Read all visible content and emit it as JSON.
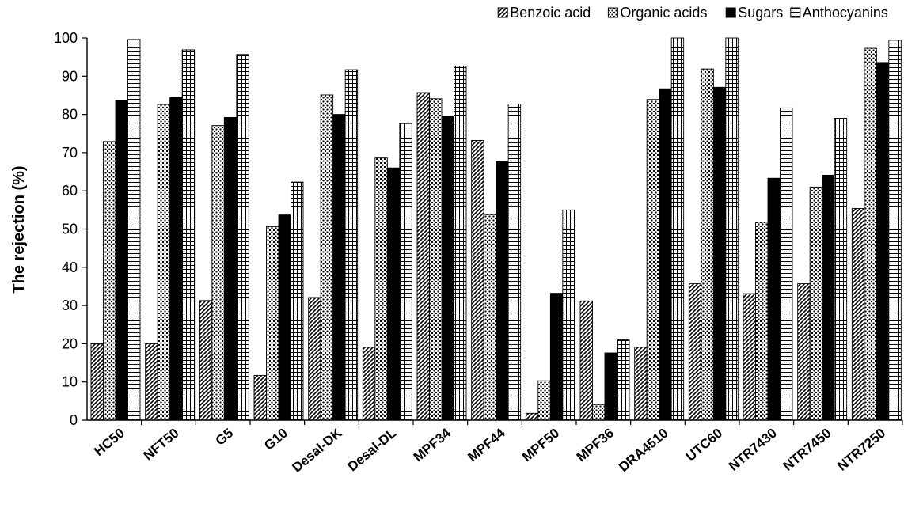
{
  "chart_data": {
    "type": "bar",
    "ylabel": "The rejection (%)",
    "xlabel": "",
    "ylim": [
      0,
      100
    ],
    "yticks": [
      0,
      10,
      20,
      30,
      40,
      50,
      60,
      70,
      80,
      90,
      100
    ],
    "grid": false,
    "legend_position": "top-right",
    "categories": [
      "HC50",
      "NFT50",
      "G5",
      "G10",
      "Desal-DK",
      "Desal-DL",
      "MPF34",
      "MPF44",
      "MPF50",
      "MPF36",
      "DRA4510",
      "UTC60",
      "NTR7430",
      "NTR7450",
      "NTR7250"
    ],
    "series": [
      {
        "name": "Benzoic acid",
        "pattern": "diagonal",
        "values": [
          20,
          20,
          31.3,
          11.7,
          32.1,
          19.1,
          85.7,
          73.2,
          1.8,
          31.2,
          19.1,
          35.7,
          33.1,
          35.7,
          55.4
        ]
      },
      {
        "name": "Organic acids",
        "pattern": "dots",
        "values": [
          72.9,
          82.6,
          77.1,
          50.6,
          85.1,
          68.6,
          84.1,
          53.8,
          10.3,
          4.1,
          83.9,
          91.9,
          51.8,
          61,
          97.3
        ]
      },
      {
        "name": "Sugars",
        "pattern": "solid",
        "values": [
          83.7,
          84.4,
          79.2,
          53.7,
          80,
          66,
          79.6,
          67.6,
          33.2,
          17.6,
          86.7,
          87.1,
          63.3,
          64.1,
          93.6
        ]
      },
      {
        "name": "Anthocyanins",
        "pattern": "grid",
        "values": [
          99.6,
          96.9,
          95.7,
          62.3,
          91.7,
          77.6,
          92.6,
          82.7,
          55,
          21,
          100,
          100,
          81.7,
          79,
          99.4
        ]
      }
    ]
  }
}
